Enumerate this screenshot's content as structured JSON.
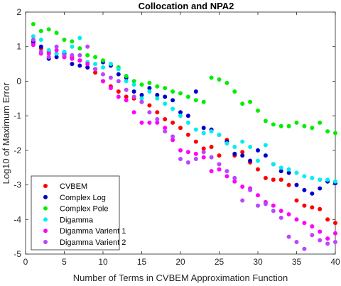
{
  "chart_data": {
    "type": "scatter",
    "title": "Collocation and NPA2",
    "xlabel": "Number of Terms in CVBEM Approximation Function",
    "ylabel": "Log10 of Maximum Error",
    "xlim": [
      0,
      40
    ],
    "ylim": [
      -5,
      2
    ],
    "xticks": [
      0,
      5,
      10,
      15,
      20,
      25,
      30,
      35,
      40
    ],
    "yticks": [
      -5,
      -4,
      -3,
      -2,
      -1,
      0,
      1,
      2
    ],
    "grid": false,
    "legend_position": "bottom-left",
    "series": [
      {
        "name": "CVBEM",
        "color": "#ff0000",
        "x": [
          1,
          2,
          3,
          4,
          5,
          6,
          7,
          8,
          9,
          10,
          11,
          12,
          13,
          14,
          15,
          16,
          17,
          18,
          19,
          20,
          21,
          22,
          23,
          24,
          25,
          26,
          27,
          28,
          29,
          30,
          31,
          32,
          33,
          34,
          35,
          36,
          37,
          38,
          39,
          40
        ],
        "y": [
          1.1,
          0.95,
          0.85,
          0.8,
          0.7,
          0.7,
          0.6,
          0.4,
          0.25,
          0.0,
          -0.15,
          -0.3,
          -0.45,
          -0.5,
          -0.6,
          -0.7,
          -0.9,
          -1.1,
          -1.2,
          -1.35,
          -1.55,
          -1.75,
          -1.95,
          -1.9,
          -2.15,
          -1.7,
          -2.15,
          -2.05,
          -2.35,
          -2.55,
          -2.8,
          -2.85,
          -2.85,
          -3.0,
          -3.45,
          -3.6,
          -3.65,
          -3.7,
          -4.0,
          -4.1
        ]
      },
      {
        "name": "Complex Log",
        "color": "#0000cc",
        "x": [
          1,
          2,
          3,
          4,
          5,
          6,
          7,
          8,
          9,
          10,
          11,
          12,
          13,
          14,
          15,
          16,
          17,
          18,
          19,
          20,
          21,
          22,
          23,
          24,
          25,
          26,
          27,
          28,
          29,
          30,
          31,
          32,
          33,
          34,
          35,
          36,
          37,
          38,
          39,
          40
        ],
        "y": [
          1.15,
          1.0,
          0.65,
          0.7,
          0.8,
          0.5,
          0.45,
          0.4,
          0.35,
          0.55,
          0.45,
          0.2,
          0.1,
          -0.3,
          -0.4,
          -0.2,
          -0.4,
          -0.45,
          -0.55,
          -0.9,
          -1.0,
          -0.3,
          -1.35,
          -1.4,
          -1.55,
          -1.75,
          -2.1,
          -2.15,
          -2.3,
          -2.0,
          -2.15,
          -2.4,
          -2.6,
          -2.65,
          -3.0,
          -3.15,
          -3.25,
          -3.1,
          -2.9,
          -2.95
        ]
      },
      {
        "name": "Complex Pole",
        "color": "#00ee00",
        "x": [
          1,
          2,
          3,
          4,
          5,
          6,
          7,
          8,
          9,
          10,
          11,
          12,
          13,
          14,
          15,
          16,
          17,
          18,
          19,
          20,
          21,
          22,
          23,
          24,
          25,
          26,
          27,
          28,
          29,
          30,
          31,
          32,
          33,
          34,
          35,
          36,
          37,
          38,
          39,
          40
        ],
        "y": [
          1.65,
          1.45,
          1.5,
          1.4,
          1.2,
          1.15,
          0.95,
          0.75,
          0.7,
          0.6,
          0.5,
          0.4,
          0.15,
          0.0,
          -0.1,
          -0.05,
          -0.15,
          -0.2,
          -0.3,
          -0.35,
          -0.45,
          -0.55,
          -0.6,
          0.1,
          0.05,
          -0.05,
          -0.3,
          -0.65,
          -0.6,
          -0.85,
          -1.15,
          -1.25,
          -1.3,
          -1.3,
          -1.2,
          -1.3,
          -1.35,
          -1.2,
          -1.45,
          -1.5
        ]
      },
      {
        "name": "Digamma",
        "color": "#00eeee",
        "x": [
          1,
          2,
          3,
          4,
          5,
          6,
          7,
          8,
          9,
          10,
          11,
          12,
          13,
          14,
          15,
          16,
          17,
          18,
          19,
          20,
          21,
          22,
          23,
          24,
          25,
          26,
          27,
          28,
          29,
          30,
          31,
          32,
          33,
          34,
          35,
          36,
          37,
          38,
          39,
          40
        ],
        "y": [
          1.3,
          1.2,
          0.9,
          0.8,
          0.85,
          1.0,
          1.25,
          0.55,
          0.5,
          0.4,
          0.5,
          0.35,
          0.0,
          -0.1,
          -0.5,
          -0.3,
          -0.5,
          -0.65,
          -0.8,
          -1.0,
          -1.2,
          -1.4,
          -1.5,
          -1.45,
          -1.55,
          -1.8,
          -1.9,
          -1.75,
          -1.9,
          -2.3,
          -1.85,
          -2.4,
          -2.5,
          -2.55,
          -2.65,
          -2.75,
          -2.8,
          -2.85,
          -2.85,
          -2.9
        ]
      },
      {
        "name": "Digamma Varient 1",
        "color": "#ff00ff",
        "x": [
          1,
          2,
          3,
          4,
          5,
          6,
          7,
          8,
          9,
          10,
          11,
          12,
          13,
          14,
          15,
          16,
          17,
          18,
          19,
          20,
          21,
          22,
          23,
          24,
          25,
          26,
          27,
          28,
          29,
          30,
          31,
          32,
          33,
          34,
          35,
          36,
          37,
          38,
          39,
          40
        ],
        "y": [
          1.05,
          0.8,
          0.8,
          0.9,
          0.7,
          0.65,
          0.6,
          0.5,
          0.35,
          0.0,
          -0.2,
          -0.45,
          -0.55,
          -0.9,
          -1.2,
          -1.2,
          -1.2,
          -1.35,
          -1.7,
          -2.0,
          -2.05,
          -2.1,
          -2.2,
          -2.6,
          -2.55,
          -2.75,
          -2.9,
          -3.05,
          -3.1,
          -3.3,
          -3.5,
          -3.6,
          -3.75,
          -3.85,
          -4.0,
          -4.1,
          -4.2,
          -4.35,
          -4.55,
          -4.4
        ]
      },
      {
        "name": "Digamma Varient 2",
        "color": "#bb44ff",
        "x": [
          1,
          2,
          3,
          4,
          5,
          6,
          7,
          8,
          9,
          10,
          11,
          12,
          13,
          14,
          15,
          16,
          17,
          18,
          19,
          20,
          21,
          22,
          23,
          24,
          25,
          26,
          27,
          28,
          29,
          30,
          31,
          32,
          33,
          34,
          35,
          36,
          37,
          38,
          39,
          40
        ],
        "y": [
          1.2,
          0.85,
          0.7,
          1.0,
          0.75,
          0.75,
          0.75,
          1.0,
          0.35,
          0.2,
          0.1,
          0.0,
          -0.25,
          -0.45,
          -0.6,
          -0.9,
          -1.1,
          -1.45,
          -1.6,
          -2.25,
          -2.35,
          -2.25,
          -2.05,
          -2.2,
          -2.4,
          -2.6,
          -2.8,
          -3.45,
          -3.15,
          -3.6,
          -3.55,
          -3.75,
          -3.95,
          -4.5,
          -4.65,
          -4.85,
          -4.45,
          -4.6,
          -4.7,
          -4.65
        ]
      }
    ]
  }
}
